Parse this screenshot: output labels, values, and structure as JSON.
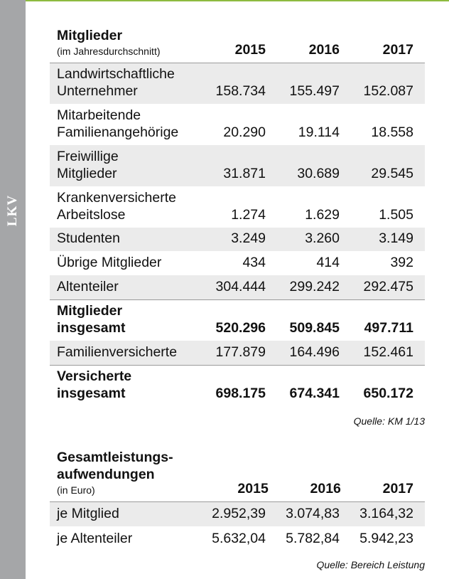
{
  "sidebar_label": "LKV",
  "table1": {
    "title": "Mitglieder",
    "subtitle": "(im Jahresdurchschnitt)",
    "years": [
      "2015",
      "2016",
      "2017"
    ],
    "rows": [
      {
        "label": "Landwirtschaftliche Unternehmer",
        "values": [
          "158.734",
          "155.497",
          "152.087"
        ]
      },
      {
        "label": "Mitarbeitende Familienangehörige",
        "values": [
          "20.290",
          "19.114",
          "18.558"
        ]
      },
      {
        "label": "Freiwillige Mitglieder",
        "values": [
          "31.871",
          "30.689",
          "29.545"
        ]
      },
      {
        "label": "Krankenversicherte Arbeitslose",
        "values": [
          "1.274",
          "1.629",
          "1.505"
        ]
      },
      {
        "label": "Studenten",
        "values": [
          "3.249",
          "3.260",
          "3.149"
        ]
      },
      {
        "label": "Übrige Mitglieder",
        "values": [
          "434",
          "414",
          "392"
        ]
      },
      {
        "label": "Altenteiler",
        "values": [
          "304.444",
          "299.242",
          "292.475"
        ]
      },
      {
        "label": "Mitglieder insgesamt",
        "values": [
          "520.296",
          "509.845",
          "497.711"
        ]
      },
      {
        "label": "Familienversicherte",
        "values": [
          "177.879",
          "164.496",
          "152.461"
        ]
      },
      {
        "label": "Versicherte insgesamt",
        "values": [
          "698.175",
          "674.341",
          "650.172"
        ]
      }
    ],
    "source": "Quelle: KM 1/13"
  },
  "table2": {
    "title": "Gesamtleistungs-aufwendungen",
    "subtitle": "(in Euro)",
    "years": [
      "2015",
      "2016",
      "2017"
    ],
    "rows": [
      {
        "label": "je Mitglied",
        "values": [
          "2.952,39",
          "3.074,83",
          "3.164,32"
        ]
      },
      {
        "label": "je Altenteiler",
        "values": [
          "5.632,04",
          "5.782,84",
          "5.942,23"
        ]
      }
    ],
    "source": "Quelle: Bereich Leistung"
  }
}
